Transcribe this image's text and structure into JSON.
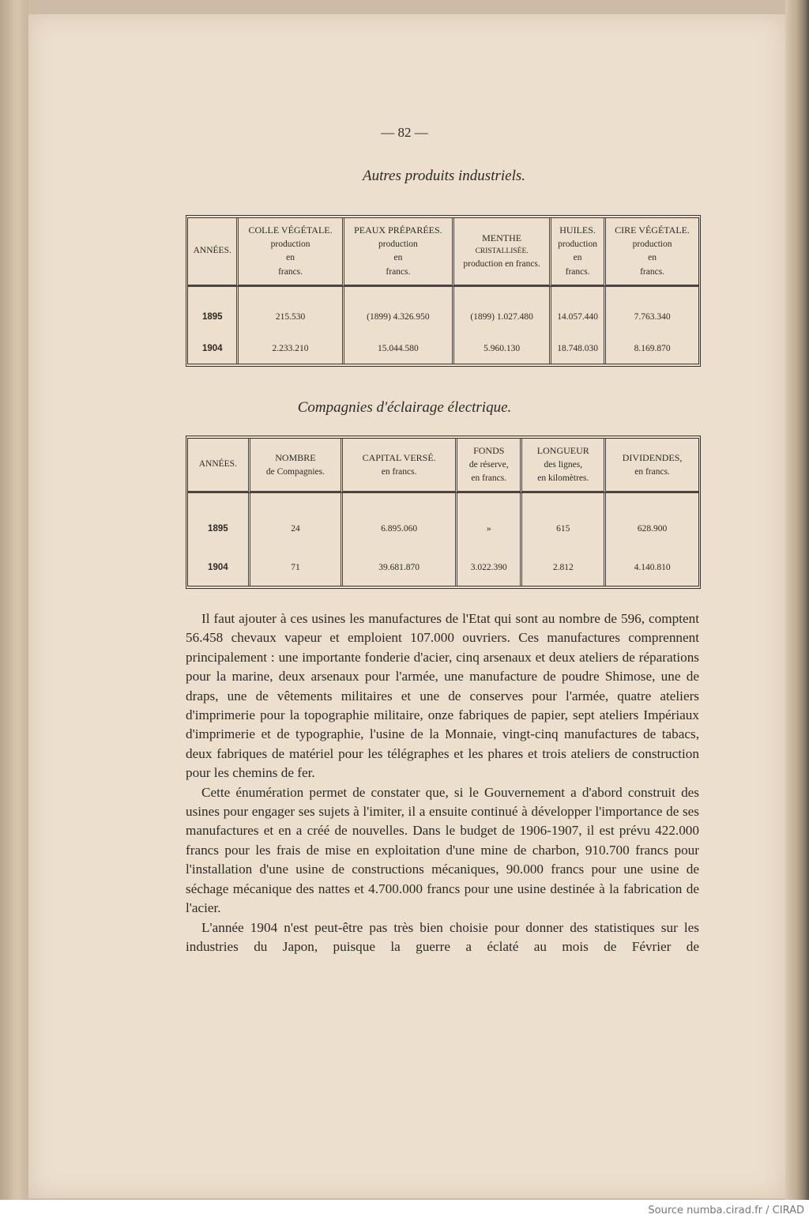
{
  "page_number": "— 82 —",
  "table1": {
    "title": "Autres produits industriels.",
    "headers": [
      [
        "ANNÉES."
      ],
      [
        "COLLE VÉGÉTALE.",
        "production",
        "en",
        "francs."
      ],
      [
        "PEAUX PRÉPARÉES.",
        "production",
        "en",
        "francs."
      ],
      [
        "MENTHE",
        "CRISTALLISÉE.",
        "production en francs."
      ],
      [
        "HUILES.",
        "production",
        "en",
        "francs."
      ],
      [
        "CIRE VÉGÉTALE.",
        "production",
        "en",
        "francs."
      ]
    ],
    "rows": [
      [
        "1895",
        "215.530",
        "(1899)  4.326.950",
        "(1899) 1.027.480",
        "14.057.440",
        "7.763.340"
      ],
      [
        "1904",
        "2.233.210",
        "15.044.580",
        "5.960.130",
        "18.748.030",
        "8.169.870"
      ]
    ]
  },
  "table2": {
    "title": "Compagnies d'éclairage électrique.",
    "headers": [
      [
        "ANNÉES."
      ],
      [
        "NOMBRE",
        "de Compagnies."
      ],
      [
        "CAPITAL VERSÉ.",
        "en francs."
      ],
      [
        "FONDS",
        "de réserve,",
        "en francs."
      ],
      [
        "LONGUEUR",
        "des lignes,",
        "en kilomètres."
      ],
      [
        "DIVIDENDES,",
        "en francs."
      ]
    ],
    "rows": [
      [
        "1895",
        "24",
        "6.895.060",
        "»",
        "615",
        "628.900"
      ],
      [
        "1904",
        "71",
        "39.681.870",
        "3.022.390",
        "2.812",
        "4.140.810"
      ]
    ]
  },
  "paragraphs": [
    "Il faut ajouter à ces usines les manufactures de l'Etat qui sont au nombre de 596, comptent 56.458 chevaux vapeur et emploient 107.000 ouvriers. Ces manufactures comprennent principalement : une importante fonderie d'acier, cinq arsenaux et deux ateliers de réparations pour la marine, deux arsenaux pour l'armée, une manufacture de poudre Shimose, une de draps, une de vêtements militaires et une de conserves pour l'armée, quatre ateliers d'imprimerie pour la topographie militaire, onze fabriques de papier, sept ateliers Impériaux d'imprimerie et de typographie, l'usine de la Monnaie, vingt-cinq manufactures de tabacs, deux fabriques de matériel pour les télégraphes et les phares et trois ateliers de construction pour les chemins de fer.",
    "Cette énumération permet de constater que, si le Gouvernement a d'abord construit des usines pour engager ses sujets à l'imiter, il a ensuite continué à développer l'importance de ses manufactures et en a créé de nouvelles. Dans le budget de 1906-1907, il est prévu 422.000 francs pour les frais de mise en exploitation d'une mine de charbon, 910.700 francs pour l'installation d'une usine de constructions mécaniques, 90.000 francs pour une usine de séchage mécanique des nattes et 4.700.000 francs pour une usine destinée à la fabrication de l'acier.",
    "L'année 1904 n'est peut-être pas très bien choisie pour donner des statistiques sur les industries du Japon, puisque la guerre a éclaté au mois de Février de"
  ],
  "source_credit": "Source numba.cirad.fr / CIRAD"
}
